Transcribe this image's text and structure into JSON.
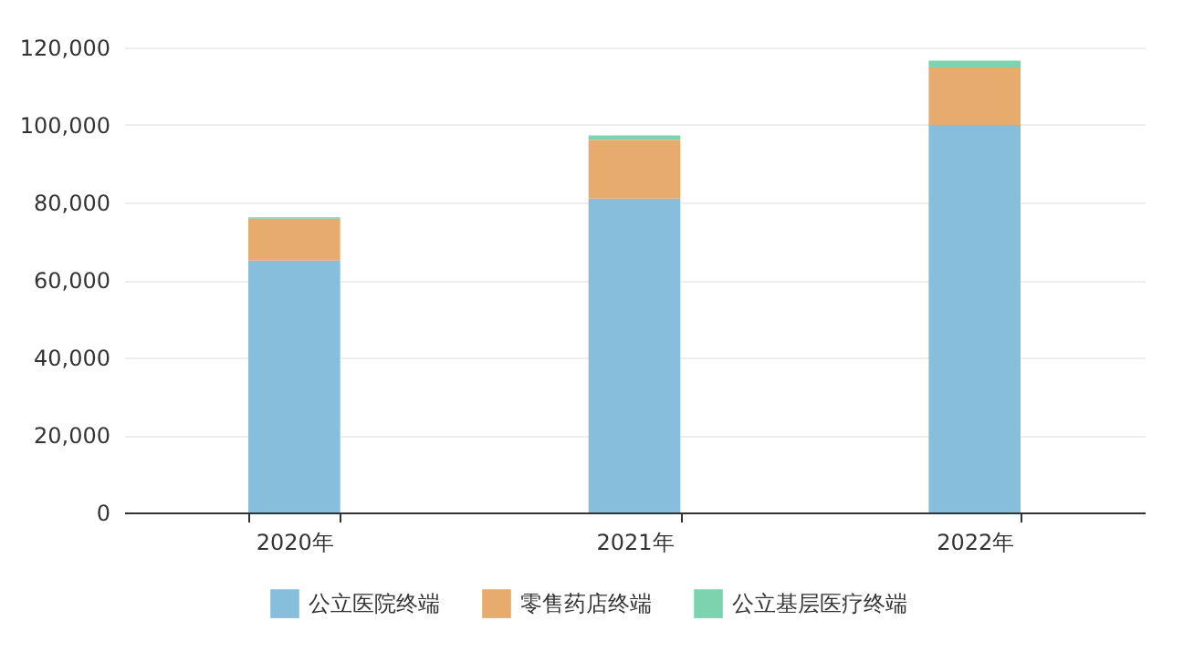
{
  "chart_data": {
    "type": "bar",
    "stacked": true,
    "categories": [
      "2020年",
      "2021年",
      "2022年"
    ],
    "series": [
      {
        "name": "公立医院终端",
        "color": "#86bedc",
        "values": [
          65000,
          81000,
          100000
        ]
      },
      {
        "name": "零售药店终端",
        "color": "#e8ab6e",
        "values": [
          10800,
          15200,
          14800
        ]
      },
      {
        "name": "公立基层医疗终端",
        "color": "#7dd3b0",
        "values": [
          400,
          1100,
          1800
        ]
      }
    ],
    "ylim": [
      0,
      120000
    ],
    "yticks": [
      0,
      {
        "value": 20000,
        "label": "20,000"
      },
      {
        "value": 40000,
        "label": "40,000"
      },
      {
        "value": 60000,
        "label": "60,000"
      },
      {
        "value": 80000,
        "label": "80,000"
      },
      {
        "value": 100000,
        "label": "100,000"
      },
      {
        "value": 120000,
        "label": "120,000"
      }
    ],
    "grid": "y",
    "legend": "bottom"
  }
}
